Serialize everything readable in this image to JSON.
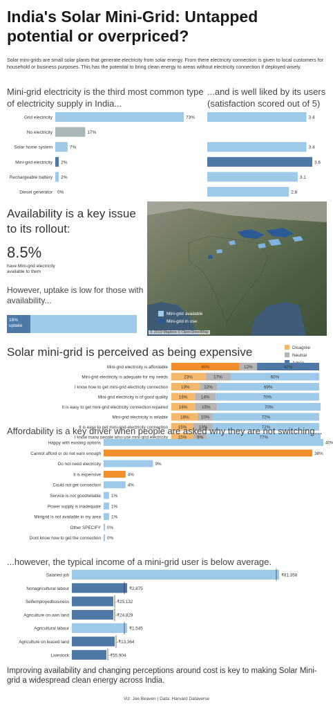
{
  "title": "India's Solar Mini-Grid: Untapped potential or overpriced?",
  "intro": "Solar mini-grids are small solar plants that generate electricity from solar energy. From there electricity connection is given to local customers for household or business purposes.  This has the potential to bring clean energy to areas without electricity connection if deployed wisely.",
  "section1": {
    "heading_left": "Mini-grid electricity is the third most common type of electricity supply in India...",
    "heading_right": "...and is well liked by its users (satisfaction scored out of 5)"
  },
  "availability": {
    "heading": "Availability is a key issue to its rollout:",
    "big_number": "8.5%",
    "big_caption": "have Mini-grid electricity available to them",
    "uptake_heading": "However, uptake is low for those with availability...",
    "uptake_label": "18%\nuptake",
    "uptake_value": 18
  },
  "map": {
    "legend_available": "Mini-grid available",
    "legend_in_use": "Mini-grid in use",
    "credit": "© 2019 Mapbox © OpenStreetMap"
  },
  "section3": {
    "heading": "Solar mini-grid is perceived as being expensive"
  },
  "section4": {
    "heading": "Affordability is a key driver when people are asked why they are not switching..."
  },
  "section5": {
    "heading": "...however, the typical income of a mini-grid user is below average."
  },
  "conclusion": "Improving availability and changing perceptions around cost is key to making Solar Mini-grid a widespread clean energy across India.",
  "footer": "Viz: Joe Beaven | Data: Harvard Dataverse",
  "colors": {
    "light_blue": "#9ecae9",
    "dark_blue": "#4e79a7",
    "grey": "#aab7b8",
    "orange": "#f28e2b",
    "light_orange": "#f5b86b",
    "neutral": "#b5b5b5"
  },
  "chart_data": [
    {
      "id": "supply",
      "type": "bar",
      "categories": [
        "Grid electricity",
        "No electricity",
        "Solar home system",
        "Mini-grid electricity",
        "Rechargeable battery",
        "Diesel generator"
      ],
      "values": [
        73,
        17,
        7,
        2,
        2,
        0
      ],
      "labels": [
        "73%",
        "17%",
        "7%",
        "2%",
        "2%",
        "0%"
      ],
      "xlim": [
        0,
        73
      ]
    },
    {
      "id": "satisfaction",
      "type": "bar",
      "categories": [
        "Grid electricity",
        "No electricity",
        "Solar home system",
        "Mini-grid electricity",
        "Rechargeable battery",
        "Diesel generator"
      ],
      "values": [
        3.4,
        null,
        3.4,
        3.6,
        3.1,
        2.8
      ],
      "labels": [
        "3.4",
        "",
        "3.4",
        "3.6",
        "3.1",
        "2.8"
      ],
      "xlim": [
        0,
        3.6
      ]
    },
    {
      "id": "perception",
      "type": "bar",
      "stacked": true,
      "categories": [
        "Mini-grid electricity is affordable",
        "Mini-grid electricity is adequate for my needs",
        "I know how to get mini-grid electricity connection",
        "Mini-grid electricity is of good quality",
        "It is easy to get mini-grid electricity connection repaired",
        "Mini-grid electricity is reliable",
        "It is easy to get mini-grid-electricity connection",
        "I know many people who use mini-grid electricity"
      ],
      "series": [
        {
          "name": "Disagree",
          "values": [
            46,
            23,
            19,
            16,
            16,
            18,
            15,
            15
          ],
          "labels": [
            "46%",
            "23%",
            "19%",
            "16%",
            "16%",
            "18%",
            "15%",
            "15%"
          ]
        },
        {
          "name": "Neutral",
          "values": [
            12,
            17,
            12,
            14,
            15,
            10,
            13,
            9
          ],
          "labels": [
            "12%",
            "17%",
            "12%",
            "14%",
            "15%",
            "10%",
            "13%",
            "9%"
          ]
        },
        {
          "name": "Agree",
          "values": [
            42,
            60,
            69,
            70,
            70,
            72,
            72,
            77
          ],
          "labels": [
            "42%",
            "60%",
            "69%",
            "70%",
            "70%",
            "72%",
            "72%",
            "77%"
          ]
        }
      ],
      "legend": [
        "Disagree",
        "Neutral",
        "Agree"
      ],
      "legend_position": "top-right"
    },
    {
      "id": "reasons",
      "type": "bar",
      "categories": [
        "Happy with existing options",
        "Cannot afford or do not earn enough",
        "Do not need electricity",
        "It is expensive",
        "Could not get connection",
        "Service is not goodreliable",
        "Power supply is inadequate",
        "Minigrid is not available in my area",
        "Other SPECIFY",
        "Dont know how to get the connection"
      ],
      "values": [
        40,
        38,
        9,
        4,
        4,
        1,
        1,
        1,
        0,
        0
      ],
      "labels": [
        "40%",
        "38%",
        "9%",
        "4%",
        "4%",
        "1%",
        "1%",
        "1%",
        "0%",
        "0%"
      ],
      "xlim": [
        0,
        40
      ]
    },
    {
      "id": "income",
      "type": "bar",
      "categories": [
        "Salaried job",
        "Nonagricultural labour",
        "Selfemployedbusiness",
        "Agriculture on own land",
        "Agricultural labour",
        "Agriculture on leased land",
        "Livestock"
      ],
      "values": [
        81358,
        2875,
        -25132,
        -24829,
        1545,
        -13364,
        -55904
      ],
      "labels": [
        "₹81,358",
        "₹2,875",
        "-₹25,132",
        "-₹24,829",
        "₹1,545",
        "-₹13,364",
        "-₹55,904"
      ]
    }
  ]
}
